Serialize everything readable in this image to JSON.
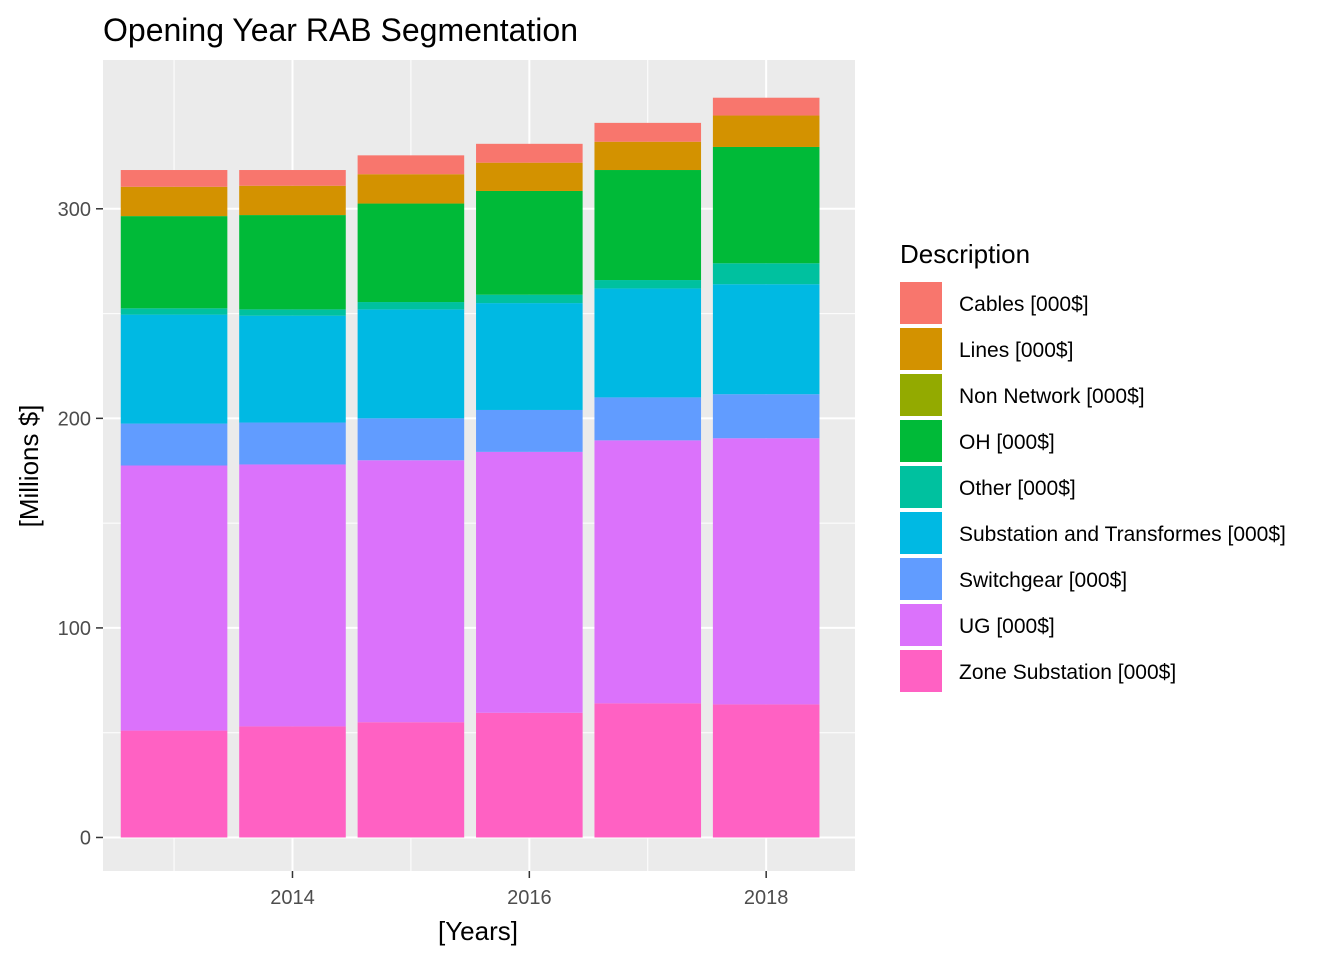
{
  "chart_data": {
    "type": "bar",
    "stacked": true,
    "title": "Opening Year RAB Segmentation",
    "xlabel": "[Years]",
    "ylabel": "[Millions $]",
    "x": [
      2013,
      2014,
      2015,
      2016,
      2017,
      2018
    ],
    "xticks": [
      "2014",
      "2016",
      "2018"
    ],
    "yticks": [
      "0",
      "100",
      "200",
      "300"
    ],
    "ylim": [
      -16,
      371
    ],
    "xlim": [
      2012.4,
      2018.75
    ],
    "grid": true,
    "legend": {
      "title": "Description",
      "position": "right",
      "entries": [
        "Cables [000$]",
        "Lines [000$]",
        "Non Network [000$]",
        "OH [000$]",
        "Other [000$]",
        "Substation and Transformes [000$]",
        "Switchgear [000$]",
        "UG [000$]",
        "Zone Substation [000$]"
      ]
    },
    "series": [
      {
        "name": "Zone Substation [000$]",
        "color": "#FF61C3",
        "values": [
          51,
          53,
          55,
          59.5,
          64,
          63.5
        ]
      },
      {
        "name": "UG [000$]",
        "color": "#DB72FB",
        "values": [
          126.5,
          125,
          125,
          124.5,
          125.5,
          127
        ]
      },
      {
        "name": "Switchgear [000$]",
        "color": "#619CFF",
        "values": [
          20,
          20,
          20,
          20,
          20.5,
          21
        ]
      },
      {
        "name": "Substation and Transformes [000$]",
        "color": "#00B9E3",
        "values": [
          52,
          51,
          52,
          51,
          52,
          52.5
        ]
      },
      {
        "name": "Other [000$]",
        "color": "#00C19F",
        "values": [
          3,
          3,
          3.5,
          4,
          4,
          10
        ]
      },
      {
        "name": "OH [000$]",
        "color": "#00BA38",
        "values": [
          44,
          45,
          47,
          49.5,
          52.5,
          55.5
        ]
      },
      {
        "name": "Non Network [000$]",
        "color": "#93AA00",
        "values": [
          0,
          0,
          0,
          0,
          0,
          0
        ]
      },
      {
        "name": "Lines [000$]",
        "color": "#D39200",
        "values": [
          14,
          14,
          14,
          13.5,
          13.5,
          15
        ]
      },
      {
        "name": "Cables [000$]",
        "color": "#F8766D",
        "values": [
          8,
          7.5,
          9,
          9,
          9,
          8.5
        ]
      }
    ],
    "legend_order": [
      "Cables [000$]",
      "Lines [000$]",
      "Non Network [000$]",
      "OH [000$]",
      "Other [000$]",
      "Substation and Transformes [000$]",
      "Switchgear [000$]",
      "UG [000$]",
      "Zone Substation [000$]"
    ]
  }
}
